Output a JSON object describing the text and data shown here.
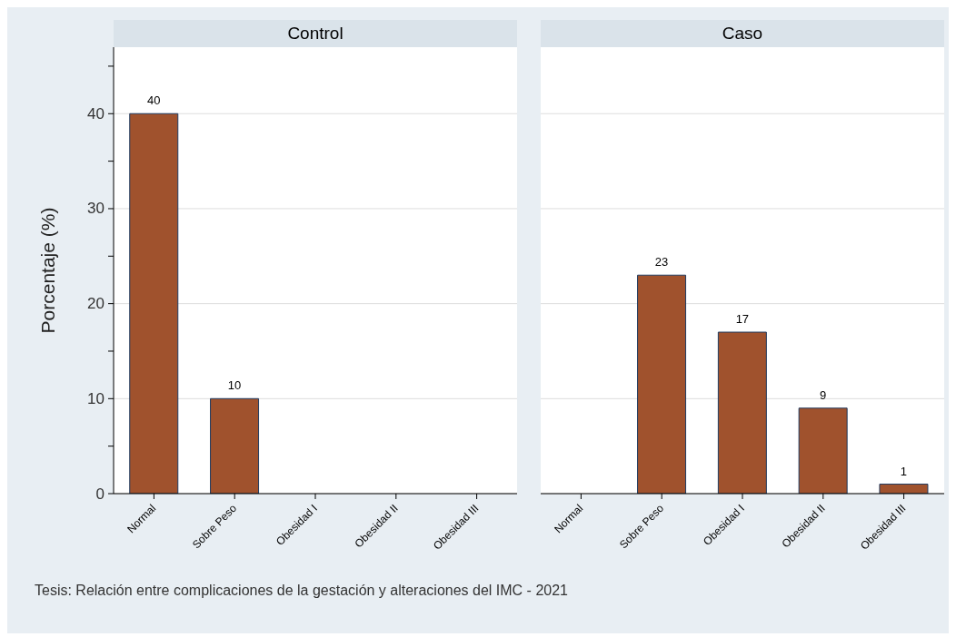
{
  "chart_data": [
    {
      "type": "bar",
      "title": "Control",
      "ylabel": "Porcentaje (%)",
      "categories": [
        "Normal",
        "Sobre Peso",
        "Obesidad I",
        "Obesidad II",
        "Obesidad III"
      ],
      "values": [
        40,
        10,
        0,
        0,
        0
      ],
      "value_labels": [
        "40",
        "10",
        null,
        null,
        null
      ],
      "color": "#a0522d",
      "ylim": [
        0,
        47
      ],
      "yticks": [
        0,
        {
          "value": 5,
          "label": null
        },
        10,
        {
          "value": 15,
          "label": null
        },
        20,
        {
          "value": 25,
          "label": null
        },
        30,
        {
          "value": 35,
          "label": null
        },
        40,
        {
          "value": 45,
          "label": null
        }
      ],
      "grid": "y",
      "annotations": [
        "Tesis: Relación entre complicaciones de la gestación y alteraciones del IMC - 2021"
      ]
    },
    {
      "type": "bar",
      "title": "Caso",
      "categories": [
        "Normal",
        "Sobre Peso",
        "Obesidad I",
        "Obesidad II",
        "Obesidad III"
      ],
      "values": [
        0,
        23,
        17,
        9,
        1
      ],
      "value_labels": [
        null,
        "23",
        "17",
        "9",
        "1"
      ],
      "color": "#a0522d",
      "ylim": [
        0,
        47
      ],
      "yticks": [
        0,
        10,
        20,
        30,
        40
      ],
      "grid": "y",
      "tick_labels": "x"
    }
  ]
}
